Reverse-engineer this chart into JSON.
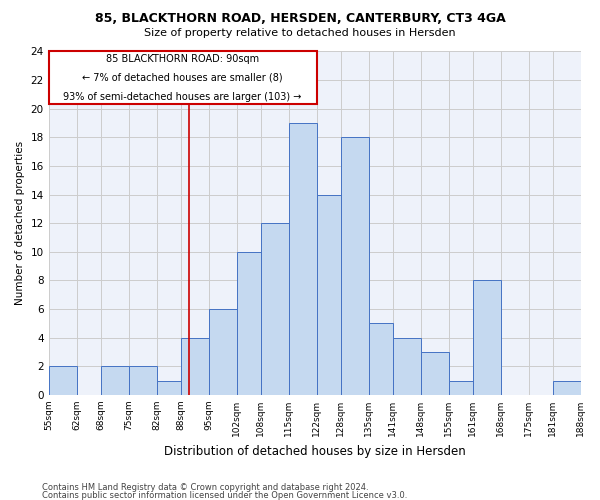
{
  "title1": "85, BLACKTHORN ROAD, HERSDEN, CANTERBURY, CT3 4GA",
  "title2": "Size of property relative to detached houses in Hersden",
  "xlabel": "Distribution of detached houses by size in Hersden",
  "ylabel": "Number of detached properties",
  "footnote1": "Contains HM Land Registry data © Crown copyright and database right 2024.",
  "footnote2": "Contains public sector information licensed under the Open Government Licence v3.0.",
  "annotation_line1": "85 BLACKTHORN ROAD: 90sqm",
  "annotation_line2": "← 7% of detached houses are smaller (8)",
  "annotation_line3": "93% of semi-detached houses are larger (103) →",
  "subject_value": 90,
  "bar_edges": [
    55,
    62,
    68,
    75,
    82,
    88,
    95,
    102,
    108,
    115,
    122,
    128,
    135,
    141,
    148,
    155,
    161,
    168,
    175,
    181,
    188
  ],
  "bar_heights": [
    2,
    0,
    2,
    2,
    1,
    4,
    6,
    10,
    12,
    19,
    14,
    18,
    5,
    4,
    3,
    1,
    8,
    0,
    0,
    1
  ],
  "bar_color": "#c5d9f0",
  "bar_edge_color": "#4472c4",
  "vline_color": "#cc0000",
  "vline_x": 90,
  "annotation_box_color": "#cc0000",
  "ylim": [
    0,
    24
  ],
  "yticks": [
    0,
    2,
    4,
    6,
    8,
    10,
    12,
    14,
    16,
    18,
    20,
    22,
    24
  ],
  "grid_color": "#cccccc",
  "plot_bg_color": "#eef2fa"
}
